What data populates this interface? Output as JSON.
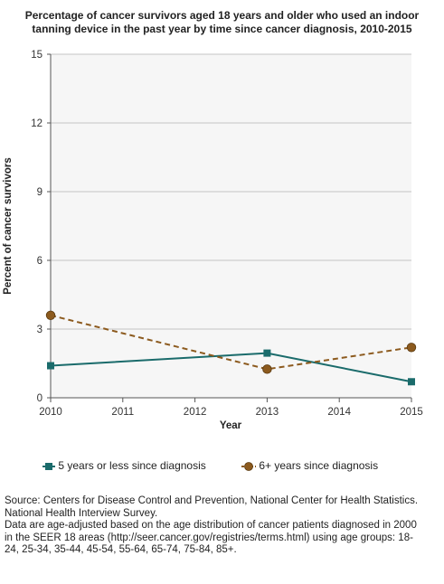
{
  "chart_data": {
    "type": "line",
    "title_lines": [
      "Percentage of cancer survivors aged 18 years and older who used an indoor",
      "tanning device in the past year by time since cancer diagnosis, 2010-2015"
    ],
    "xlabel": "Year",
    "ylabel": "Percent of cancer survivors",
    "x_ticks": [
      "2010",
      "2011",
      "2012",
      "2013",
      "2014",
      "2015"
    ],
    "xlim": [
      2010,
      2015
    ],
    "y_ticks": [
      "0",
      "3",
      "6",
      "9",
      "12",
      "15"
    ],
    "ylim": [
      0,
      15
    ],
    "grid": true,
    "legend_position": "bottom",
    "series": [
      {
        "name": "5 years or less since diagnosis",
        "x": [
          2010,
          2013,
          2015
        ],
        "values": [
          1.4,
          1.95,
          0.7
        ],
        "color": "#1a6b6b",
        "line_style": "solid",
        "marker": "square"
      },
      {
        "name": "6+ years since diagnosis",
        "x": [
          2010,
          2013,
          2015
        ],
        "values": [
          3.6,
          1.25,
          2.2
        ],
        "color": "#8c5a1e",
        "line_style": "dashed",
        "marker": "circle"
      }
    ]
  },
  "source": [
    "Source: Centers for Disease Control and Prevention, National Center for Health Statistics.",
    "National Health Interview Survey.",
    "Data are age-adjusted based on the age distribution of cancer patients diagnosed in 2000",
    "in the SEER 18 areas (http://seer.cancer.gov/registries/terms.html) using age groups: 18-",
    "24, 25-34, 35-44, 45-54, 55-64, 65-74, 75-84, 85+."
  ]
}
